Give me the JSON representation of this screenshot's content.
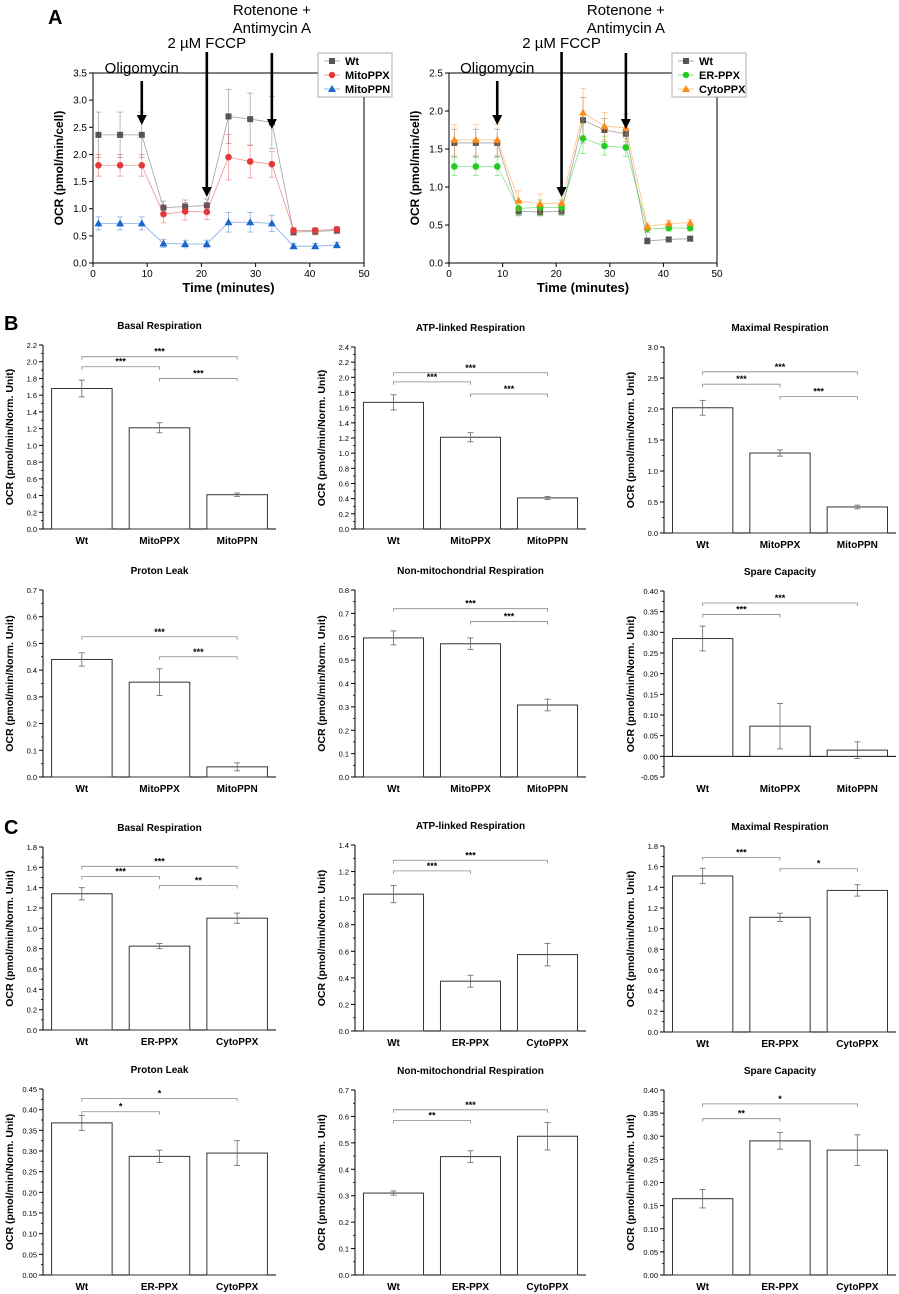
{
  "panels": {
    "a": "A",
    "b": "B",
    "c": "C"
  },
  "chart_data": [
    {
      "type": "line",
      "id": "A1",
      "title": "",
      "xlabel": "Time (minutes)",
      "ylabel": "OCR (pmol/min/cell)",
      "xlim": [
        0,
        50
      ],
      "ylim": [
        0,
        3.5
      ],
      "xticks": [
        0,
        10,
        20,
        30,
        40,
        50
      ],
      "yticks": [
        0,
        0.5,
        1.0,
        1.5,
        2.0,
        2.5,
        3.0,
        3.5
      ],
      "x": [
        1,
        5,
        9,
        13,
        17,
        21,
        25,
        29,
        33,
        37,
        41,
        45
      ],
      "annotations": [
        {
          "x": 9,
          "lines": [
            "Oligomycin"
          ]
        },
        {
          "x": 21,
          "lines": [
            "2 µM FCCP"
          ]
        },
        {
          "x": 33,
          "lines": [
            "Rotenone +",
            "Antimycin A"
          ]
        }
      ],
      "series": [
        {
          "name": "Wt",
          "color": "#555555",
          "marker": "square",
          "values": [
            2.36,
            2.36,
            2.36,
            1.02,
            1.04,
            1.06,
            2.7,
            2.65,
            2.59,
            0.57,
            0.58,
            0.6
          ],
          "err": [
            0.42,
            0.42,
            0.42,
            0.12,
            0.12,
            0.12,
            0.5,
            0.48,
            0.48,
            0.06,
            0.06,
            0.06
          ]
        },
        {
          "name": "MitoPPX",
          "color": "#e23a3a",
          "marker": "circle",
          "values": [
            1.8,
            1.8,
            1.8,
            0.9,
            0.95,
            0.94,
            1.95,
            1.87,
            1.82,
            0.6,
            0.6,
            0.62
          ],
          "err": [
            0.2,
            0.2,
            0.2,
            0.16,
            0.16,
            0.14,
            0.42,
            0.3,
            0.24,
            0.05,
            0.05,
            0.05
          ]
        },
        {
          "name": "MitoPPN",
          "color": "#1a66cc",
          "marker": "triangle",
          "values": [
            0.73,
            0.73,
            0.73,
            0.36,
            0.35,
            0.35,
            0.75,
            0.75,
            0.73,
            0.31,
            0.31,
            0.33
          ],
          "err": [
            0.12,
            0.12,
            0.12,
            0.07,
            0.07,
            0.07,
            0.18,
            0.18,
            0.15,
            0.05,
            0.05,
            0.05
          ]
        }
      ]
    },
    {
      "type": "line",
      "id": "A2",
      "title": "",
      "xlabel": "Time (minutes)",
      "ylabel": "OCR (pmol/min/cell)",
      "xlim": [
        0,
        50
      ],
      "ylim": [
        0,
        2.5
      ],
      "xticks": [
        0,
        10,
        20,
        30,
        40,
        50
      ],
      "yticks": [
        0,
        0.5,
        1.0,
        1.5,
        2.0,
        2.5
      ],
      "x": [
        1,
        5,
        9,
        13,
        17,
        21,
        25,
        29,
        33,
        37,
        41,
        45
      ],
      "annotations": [
        {
          "x": 9,
          "lines": [
            "Oligomycin"
          ]
        },
        {
          "x": 21,
          "lines": [
            "2 µM FCCP"
          ]
        },
        {
          "x": 33,
          "lines": [
            "Rotenone +",
            "Antimycin A"
          ]
        }
      ],
      "series": [
        {
          "name": "Wt",
          "color": "#555555",
          "marker": "square",
          "values": [
            1.58,
            1.58,
            1.58,
            0.68,
            0.67,
            0.68,
            1.88,
            1.75,
            1.7,
            0.29,
            0.31,
            0.32
          ],
          "err": [
            0.18,
            0.18,
            0.18,
            0.05,
            0.05,
            0.05,
            0.3,
            0.15,
            0.15,
            0.04,
            0.03,
            0.03
          ]
        },
        {
          "name": "ER-PPX",
          "color": "#22cc22",
          "marker": "circle",
          "values": [
            1.27,
            1.27,
            1.27,
            0.72,
            0.73,
            0.73,
            1.64,
            1.54,
            1.52,
            0.45,
            0.46,
            0.46
          ],
          "err": [
            0.12,
            0.12,
            0.12,
            0.1,
            0.1,
            0.1,
            0.2,
            0.12,
            0.12,
            0.05,
            0.04,
            0.04
          ]
        },
        {
          "name": "CytoPPX",
          "color": "#ff8c1a",
          "marker": "triangle",
          "values": [
            1.62,
            1.62,
            1.62,
            0.82,
            0.78,
            0.79,
            1.98,
            1.8,
            1.78,
            0.48,
            0.52,
            0.53
          ],
          "err": [
            0.2,
            0.2,
            0.2,
            0.13,
            0.13,
            0.12,
            0.32,
            0.18,
            0.18,
            0.05,
            0.04,
            0.04
          ]
        }
      ]
    },
    {
      "type": "bar",
      "id": "B1",
      "title": "Basal Respiration",
      "ylabel": "OCR (pmol/min/Norm. Unit)",
      "categories": [
        "Wt",
        "MitoPPX",
        "MitoPPN"
      ],
      "values": [
        1.68,
        1.21,
        0.41
      ],
      "err": [
        0.1,
        0.06,
        0.02
      ],
      "ylim": [
        0,
        2.2
      ],
      "yticks": [
        0,
        0.2,
        0.4,
        0.6,
        0.8,
        1.0,
        1.2,
        1.4,
        1.6,
        1.8,
        2.0,
        2.2
      ],
      "ydec": 1,
      "sig": [
        {
          "from": 0,
          "to": 1,
          "label": "***",
          "y": 1.94
        },
        {
          "from": 0,
          "to": 2,
          "label": "***",
          "y": 2.06
        },
        {
          "from": 1,
          "to": 2,
          "label": "***",
          "y": 1.8
        }
      ]
    },
    {
      "type": "bar",
      "id": "B2",
      "title": "ATP-linked Respiration",
      "ylabel": "OCR (pmol/min/Norm. Unit)",
      "categories": [
        "Wt",
        "MitoPPX",
        "MitoPPN"
      ],
      "values": [
        1.67,
        1.21,
        0.41
      ],
      "err": [
        0.1,
        0.06,
        0.02
      ],
      "ylim": [
        0,
        2.4
      ],
      "yticks": [
        0,
        0.2,
        0.4,
        0.6,
        0.8,
        1.0,
        1.2,
        1.4,
        1.6,
        1.8,
        2.0,
        2.2,
        2.4
      ],
      "ydec": 1,
      "sig": [
        {
          "from": 0,
          "to": 1,
          "label": "***",
          "y": 1.94
        },
        {
          "from": 0,
          "to": 2,
          "label": "***",
          "y": 2.06
        },
        {
          "from": 1,
          "to": 2,
          "label": "***",
          "y": 1.78
        }
      ]
    },
    {
      "type": "bar",
      "id": "B3",
      "title": "Maximal Respiration",
      "ylabel": "OCR (pmol/min/Norm. Unit)",
      "categories": [
        "Wt",
        "MitoPPX",
        "MitoPPN"
      ],
      "values": [
        2.02,
        1.29,
        0.42
      ],
      "err": [
        0.12,
        0.05,
        0.03
      ],
      "ylim": [
        0,
        3.0
      ],
      "yticks": [
        0,
        0.5,
        1.0,
        1.5,
        2.0,
        2.5,
        3.0
      ],
      "ydec": 1,
      "sig": [
        {
          "from": 0,
          "to": 1,
          "label": "***",
          "y": 2.4
        },
        {
          "from": 0,
          "to": 2,
          "label": "***",
          "y": 2.6
        },
        {
          "from": 1,
          "to": 2,
          "label": "***",
          "y": 2.2
        }
      ]
    },
    {
      "type": "bar",
      "id": "B4",
      "title": "Proton Leak",
      "ylabel": "OCR (pmol/min/Norm. Unit)",
      "categories": [
        "Wt",
        "MitoPPX",
        "MitoPPN"
      ],
      "values": [
        0.44,
        0.355,
        0.038
      ],
      "err": [
        0.025,
        0.05,
        0.015
      ],
      "ylim": [
        0,
        0.7
      ],
      "yticks": [
        0,
        0.1,
        0.2,
        0.3,
        0.4,
        0.5,
        0.6,
        0.7
      ],
      "ydec": 1,
      "sig": [
        {
          "from": 0,
          "to": 2,
          "label": "***",
          "y": 0.525
        },
        {
          "from": 1,
          "to": 2,
          "label": "***",
          "y": 0.45
        }
      ]
    },
    {
      "type": "bar",
      "id": "B5",
      "title": "Non-mitochondrial Respiration",
      "ylabel": "OCR (pmol/min/Norm. Unit)",
      "categories": [
        "Wt",
        "MitoPPX",
        "MitoPPN"
      ],
      "values": [
        0.595,
        0.57,
        0.308
      ],
      "err": [
        0.03,
        0.025,
        0.025
      ],
      "ylim": [
        0,
        0.8
      ],
      "yticks": [
        0,
        0.1,
        0.2,
        0.3,
        0.4,
        0.5,
        0.6,
        0.7,
        0.8
      ],
      "ydec": 1,
      "sig": [
        {
          "from": 0,
          "to": 2,
          "label": "***",
          "y": 0.72
        },
        {
          "from": 1,
          "to": 2,
          "label": "***",
          "y": 0.665
        }
      ]
    },
    {
      "type": "bar",
      "id": "B6",
      "title": "Spare Capacity",
      "ylabel": "OCR (pmol/min/Norm. Unit)",
      "categories": [
        "Wt",
        "MitoPPX",
        "MitoPPN"
      ],
      "values": [
        0.285,
        0.073,
        0.015
      ],
      "err": [
        0.03,
        0.055,
        0.02
      ],
      "ylim": [
        -0.05,
        0.4
      ],
      "yticks": [
        -0.05,
        0,
        0.05,
        0.1,
        0.15,
        0.2,
        0.25,
        0.3,
        0.35,
        0.4
      ],
      "ydec": 2,
      "sig": [
        {
          "from": 0,
          "to": 1,
          "label": "***",
          "y": 0.343
        },
        {
          "from": 0,
          "to": 2,
          "label": "***",
          "y": 0.371
        }
      ]
    },
    {
      "type": "bar",
      "id": "C1",
      "title": "Basal Respiration",
      "ylabel": "OCR (pmol/min/Norm. Unit)",
      "categories": [
        "Wt",
        "ER-PPX",
        "CytoPPX"
      ],
      "values": [
        1.34,
        0.825,
        1.1
      ],
      "err": [
        0.06,
        0.025,
        0.05
      ],
      "ylim": [
        0,
        1.8
      ],
      "yticks": [
        0,
        0.2,
        0.4,
        0.6,
        0.8,
        1.0,
        1.2,
        1.4,
        1.6,
        1.8
      ],
      "ydec": 1,
      "sig": [
        {
          "from": 0,
          "to": 1,
          "label": "***",
          "y": 1.51
        },
        {
          "from": 0,
          "to": 2,
          "label": "***",
          "y": 1.61
        },
        {
          "from": 1,
          "to": 2,
          "label": "**",
          "y": 1.42
        }
      ]
    },
    {
      "type": "bar",
      "id": "C2",
      "title": "ATP-linked Respiration",
      "ylabel": "OCR (pmol/min/Norm. Unit)",
      "categories": [
        "Wt",
        "ER-PPX",
        "CytoPPX"
      ],
      "values": [
        1.03,
        0.375,
        0.575
      ],
      "err": [
        0.065,
        0.045,
        0.085
      ],
      "ylim": [
        0,
        1.4
      ],
      "yticks": [
        0,
        0.2,
        0.4,
        0.6,
        0.8,
        1.0,
        1.2,
        1.4
      ],
      "ydec": 1,
      "sig": [
        {
          "from": 0,
          "to": 1,
          "label": "***",
          "y": 1.205
        },
        {
          "from": 0,
          "to": 2,
          "label": "***",
          "y": 1.285
        }
      ]
    },
    {
      "type": "bar",
      "id": "C3",
      "title": "Maximal Respiration",
      "ylabel": "OCR (pmol/min/Norm. Unit)",
      "categories": [
        "Wt",
        "ER-PPX",
        "CytoPPX"
      ],
      "values": [
        1.51,
        1.11,
        1.37
      ],
      "err": [
        0.075,
        0.04,
        0.055
      ],
      "ylim": [
        0,
        1.8
      ],
      "yticks": [
        0,
        0.2,
        0.4,
        0.6,
        0.8,
        1.0,
        1.2,
        1.4,
        1.6,
        1.8
      ],
      "ydec": 1,
      "sig": [
        {
          "from": 0,
          "to": 1,
          "label": "***",
          "y": 1.69
        },
        {
          "from": 1,
          "to": 2,
          "label": "*",
          "y": 1.58
        }
      ]
    },
    {
      "type": "bar",
      "id": "C4",
      "title": "Proton Leak",
      "ylabel": "OCR (pmol/min/Norm. Unit)",
      "categories": [
        "Wt",
        "ER-PPX",
        "CytoPPX"
      ],
      "values": [
        0.368,
        0.287,
        0.295
      ],
      "err": [
        0.018,
        0.015,
        0.03
      ],
      "ylim": [
        0,
        0.45
      ],
      "yticks": [
        0,
        0.05,
        0.1,
        0.15,
        0.2,
        0.25,
        0.3,
        0.35,
        0.4,
        0.45
      ],
      "ydec": 2,
      "sig": [
        {
          "from": 0,
          "to": 1,
          "label": "*",
          "y": 0.395
        },
        {
          "from": 0,
          "to": 2,
          "label": "*",
          "y": 0.427
        }
      ]
    },
    {
      "type": "bar",
      "id": "C5",
      "title": "Non-mitochondrial Respiration",
      "ylabel": "OCR (pmol/min/Norm. Unit)",
      "categories": [
        "Wt",
        "ER-PPX",
        "CytoPPX"
      ],
      "values": [
        0.31,
        0.448,
        0.525
      ],
      "err": [
        0.008,
        0.022,
        0.052
      ],
      "ylim": [
        0,
        0.7
      ],
      "yticks": [
        0,
        0.1,
        0.2,
        0.3,
        0.4,
        0.5,
        0.6,
        0.7
      ],
      "ydec": 1,
      "sig": [
        {
          "from": 0,
          "to": 1,
          "label": "**",
          "y": 0.585
        },
        {
          "from": 0,
          "to": 2,
          "label": "***",
          "y": 0.625
        }
      ]
    },
    {
      "type": "bar",
      "id": "C6",
      "title": "Spare Capacity",
      "ylabel": "OCR (pmol/min/Norm. Unit)",
      "categories": [
        "Wt",
        "ER-PPX",
        "CytoPPX"
      ],
      "values": [
        0.165,
        0.29,
        0.27
      ],
      "err": [
        0.02,
        0.018,
        0.033
      ],
      "ylim": [
        0,
        0.4
      ],
      "yticks": [
        0,
        0.05,
        0.1,
        0.15,
        0.2,
        0.25,
        0.3,
        0.35,
        0.4
      ],
      "ydec": 2,
      "sig": [
        {
          "from": 0,
          "to": 1,
          "label": "**",
          "y": 0.338
        },
        {
          "from": 0,
          "to": 2,
          "label": "*",
          "y": 0.37
        }
      ]
    }
  ]
}
